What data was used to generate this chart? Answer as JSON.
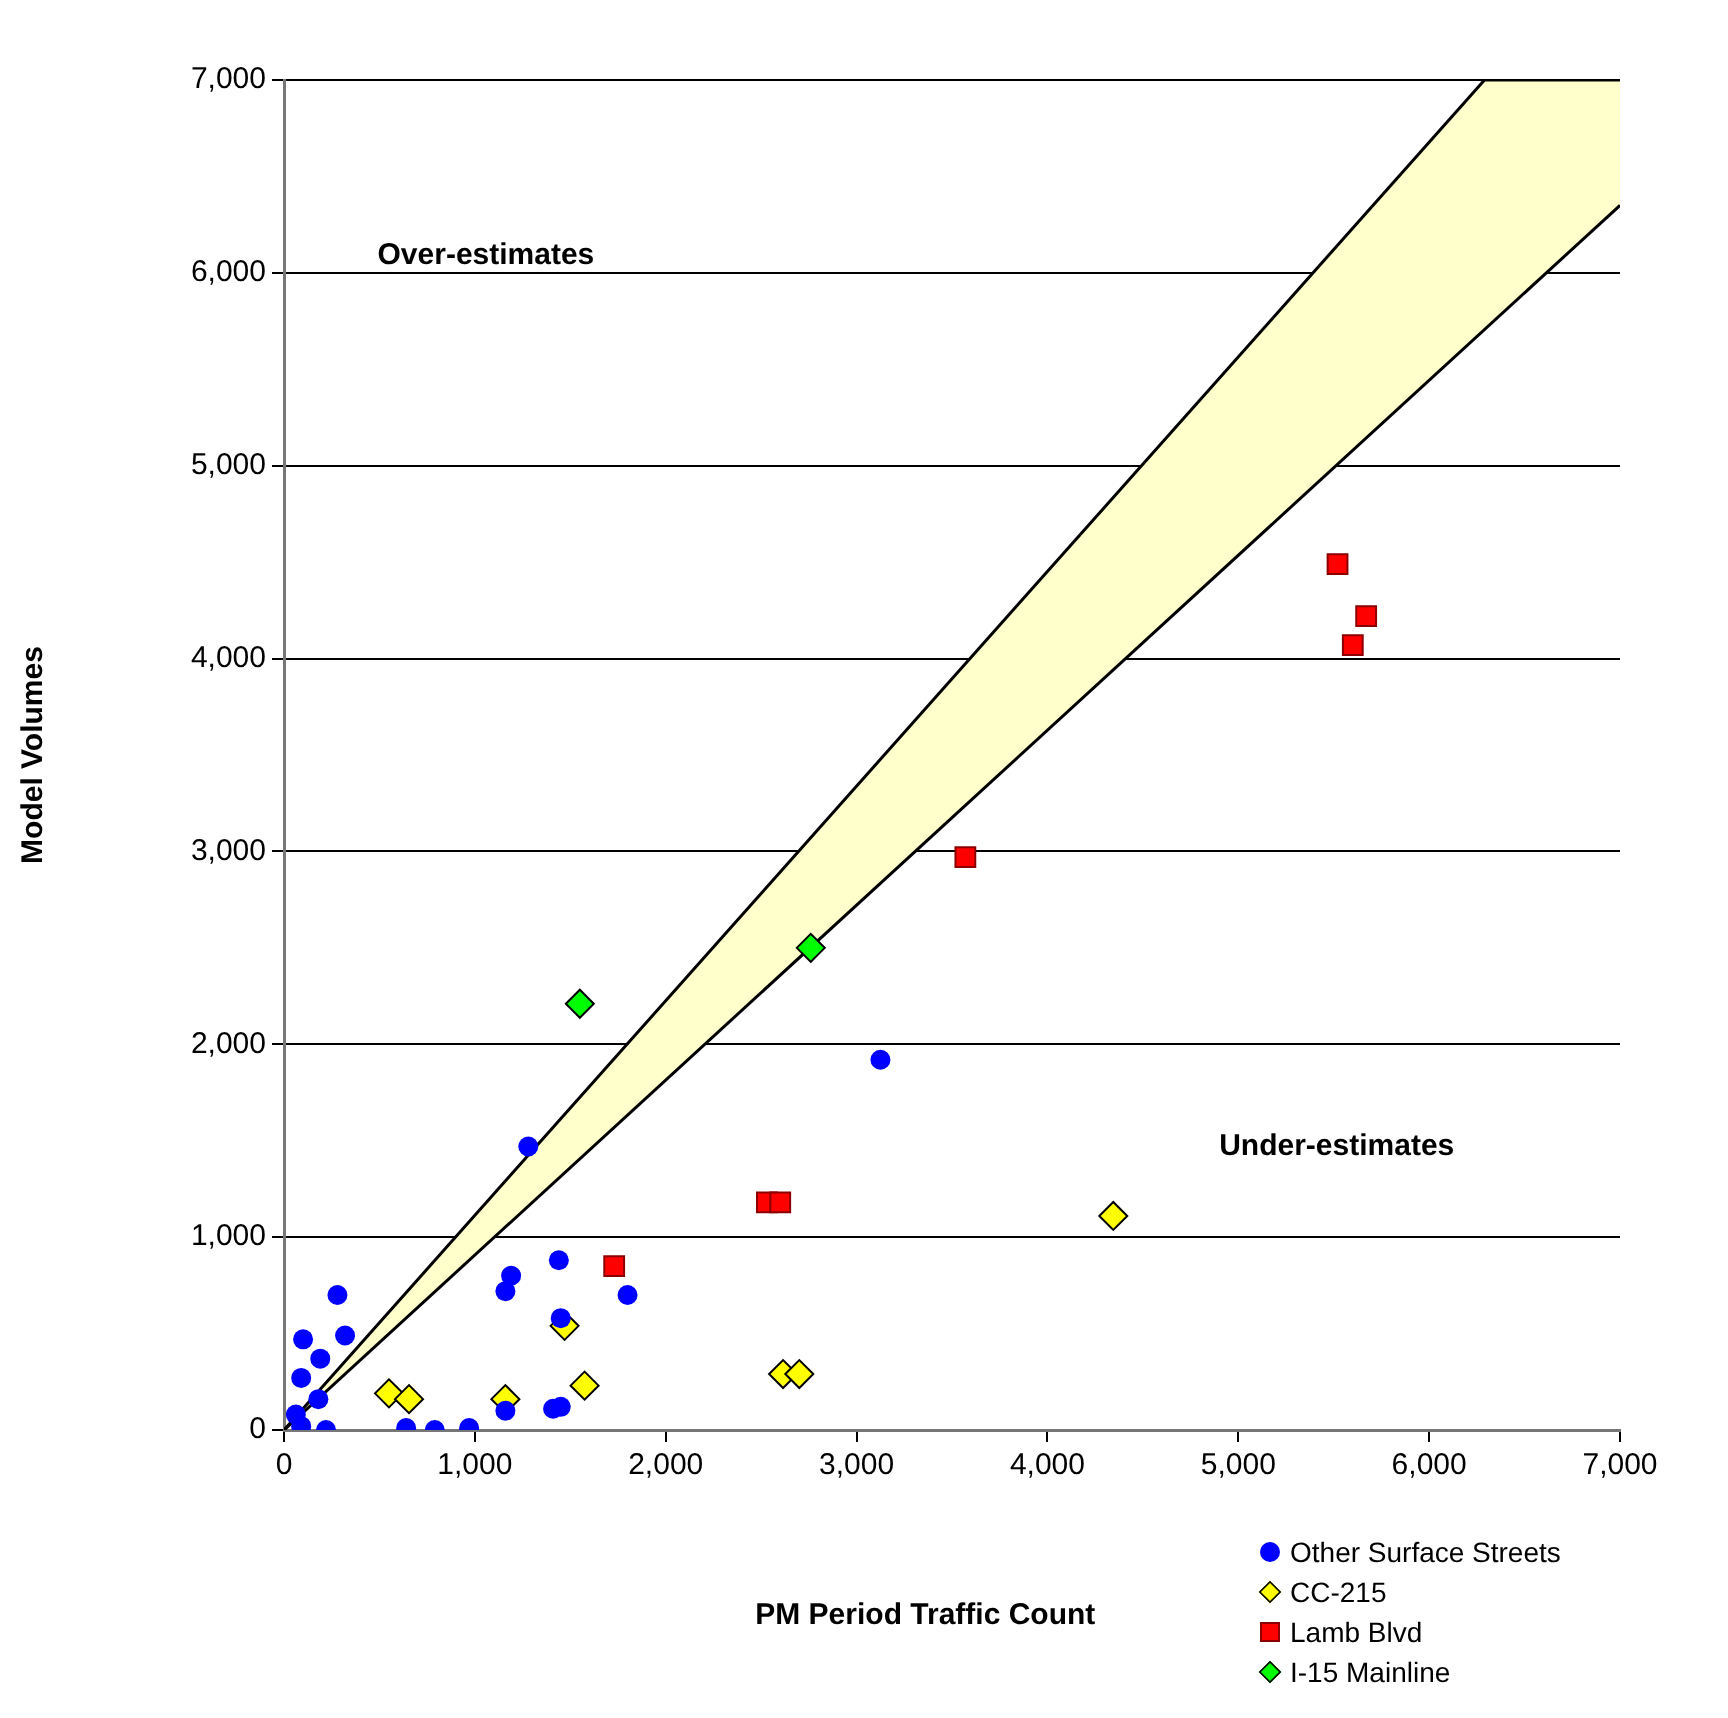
{
  "chart_data": {
    "type": "scatter",
    "xlabel": "PM Period Traffic Count",
    "ylabel": "Model Volumes",
    "annotations": [
      "Over-estimates",
      "Under-estimates"
    ],
    "xlim": [
      0,
      7000
    ],
    "ylim": [
      0,
      7000
    ],
    "xticks": [
      0,
      {
        "value": 1000,
        "label": "1,000"
      },
      {
        "value": 2000,
        "label": "2,000"
      },
      {
        "value": 3000,
        "label": "3,000"
      },
      {
        "value": 4000,
        "label": "4,000"
      },
      {
        "value": 5000,
        "label": "5,000"
      },
      {
        "value": 6000,
        "label": "6,000"
      },
      {
        "value": 7000,
        "label": "7,000"
      }
    ],
    "yticks": [
      0,
      {
        "value": 1000,
        "label": "1,000"
      },
      {
        "value": 2000,
        "label": "2,000"
      },
      {
        "value": 3000,
        "label": "3,000"
      },
      {
        "value": 4000,
        "label": "4,000"
      },
      {
        "value": 5000,
        "label": "5,000"
      },
      {
        "value": 6000,
        "label": "6,000"
      },
      {
        "value": 7000,
        "label": "7,000"
      }
    ],
    "grid": "y",
    "legend": "bottom right",
    "series": [
      {
        "type": "line",
        "color": "#000000",
        "x": [
          0,
          6290,
          7000
        ],
        "values": [
          0,
          7000,
          7000
        ]
      },
      {
        "type": "line",
        "color": "#000000",
        "x": [
          0,
          7000
        ],
        "values": [
          0,
          6350
        ]
      },
      {
        "name": "Other Surface Streets",
        "color": "#0000ff",
        "marker": "circle",
        "x": [
          62,
          90,
          220,
          180,
          90,
          190,
          100,
          320,
          280,
          640,
          790,
          970,
          1160,
          1160,
          1190,
          1280,
          1440,
          1410,
          1450,
          1450,
          1800,
          3125
        ],
        "values": [
          80,
          20,
          0,
          160,
          270,
          370,
          470,
          490,
          700,
          10,
          0,
          10,
          100,
          720,
          800,
          1470,
          880,
          110,
          120,
          580,
          700,
          1920
        ]
      },
      {
        "name": "CC-215",
        "color": "#ffff00",
        "marker": "diamond",
        "x": [
          550,
          655,
          1160,
          1470,
          1575,
          2615,
          2700,
          4345
        ],
        "values": [
          190,
          160,
          160,
          540,
          230,
          290,
          290,
          1110
        ]
      },
      {
        "name": "Lamb Blvd",
        "color": "#ff0000",
        "marker": "square",
        "x": [
          5520,
          5670,
          5600,
          3570,
          2530,
          2600,
          1730
        ],
        "values": [
          4490,
          4220,
          4070,
          2970,
          1180,
          1180,
          850
        ]
      },
      {
        "name": "I-15 Mainline",
        "color": "#00ff00",
        "marker": "diamond",
        "x": [
          2760,
          1550
        ],
        "values": [
          2500,
          2210
        ]
      }
    ]
  }
}
